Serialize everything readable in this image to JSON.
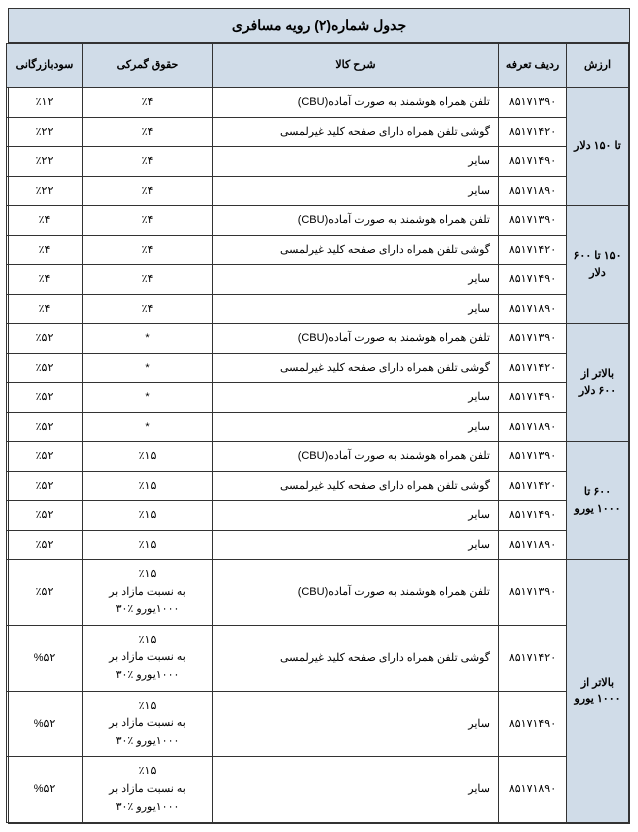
{
  "title": "جدول شماره(۲) رویه مسافری",
  "columns": {
    "arzeesh": "ارزش",
    "tariff": "ردیف تعرفه",
    "desc": "شرح کالا",
    "duty": "حقوق گمرکی",
    "trade": "سودبازرگانی"
  },
  "groups": [
    {
      "label": "تا ۱۵۰ دلار",
      "rows": [
        {
          "tariff": "۸۵۱۷۱۳۹۰",
          "desc": "تلفن همراه هوشمند به صورت آماده(CBU)",
          "duty": "٪۴",
          "trade": "٪۱۲"
        },
        {
          "tariff": "۸۵۱۷۱۴۲۰",
          "desc": "گوشی تلفن همراه دارای صفحه کلید غیرلمسی",
          "duty": "٪۴",
          "trade": "٪۲۲"
        },
        {
          "tariff": "۸۵۱۷۱۴۹۰",
          "desc": "سایر",
          "duty": "٪۴",
          "trade": "٪۲۲"
        },
        {
          "tariff": "۸۵۱۷۱۸۹۰",
          "desc": "سایر",
          "duty": "٪۴",
          "trade": "٪۲۲"
        }
      ]
    },
    {
      "label": "۱۵۰ تا ۶۰۰ دلار",
      "rows": [
        {
          "tariff": "۸۵۱۷۱۳۹۰",
          "desc": "تلفن همراه هوشمند به صورت آماده(CBU)",
          "duty": "٪۴",
          "trade": "٪۴"
        },
        {
          "tariff": "۸۵۱۷۱۴۲۰",
          "desc": "گوشی تلفن همراه دارای صفحه کلید غیرلمسی",
          "duty": "٪۴",
          "trade": "٪۴"
        },
        {
          "tariff": "۸۵۱۷۱۴۹۰",
          "desc": "سایر",
          "duty": "٪۴",
          "trade": "٪۴"
        },
        {
          "tariff": "۸۵۱۷۱۸۹۰",
          "desc": "سایر",
          "duty": "٪۴",
          "trade": "٪۴"
        }
      ]
    },
    {
      "label": "بالاتر از ۶۰۰ دلار",
      "rows": [
        {
          "tariff": "۸۵۱۷۱۳۹۰",
          "desc": "تلفن همراه هوشمند به صورت آماده(CBU)",
          "duty": "*",
          "trade": "٪۵۲"
        },
        {
          "tariff": "۸۵۱۷۱۴۲۰",
          "desc": "گوشی تلفن همراه دارای صفحه کلید غیرلمسی",
          "duty": "*",
          "trade": "٪۵۲"
        },
        {
          "tariff": "۸۵۱۷۱۴۹۰",
          "desc": "سایر",
          "duty": "*",
          "trade": "٪۵۲"
        },
        {
          "tariff": "۸۵۱۷۱۸۹۰",
          "desc": "سایر",
          "duty": "*",
          "trade": "٪۵۲"
        }
      ]
    },
    {
      "label": "۶۰۰ تا ۱۰۰۰ یورو",
      "rows": [
        {
          "tariff": "۸۵۱۷۱۳۹۰",
          "desc": "تلفن همراه هوشمند به صورت آماده(CBU)",
          "duty": "٪۱۵",
          "trade": "٪۵۲"
        },
        {
          "tariff": "۸۵۱۷۱۴۲۰",
          "desc": "گوشی تلفن همراه دارای صفحه کلید غیرلمسی",
          "duty": "٪۱۵",
          "trade": "٪۵۲"
        },
        {
          "tariff": "۸۵۱۷۱۴۹۰",
          "desc": "سایر",
          "duty": "٪۱۵",
          "trade": "٪۵۲"
        },
        {
          "tariff": "۸۵۱۷۱۸۹۰",
          "desc": "سایر",
          "duty": "٪۱۵",
          "trade": "٪۵۲"
        }
      ]
    },
    {
      "label": "بالاتر از ۱۰۰۰ یورو",
      "rows": [
        {
          "tariff": "۸۵۱۷۱۳۹۰",
          "desc": "تلفن همراه هوشمند به صورت آماده(CBU)",
          "duty": "٪۱۵\nبه نسبت مازاد بر ۱۰۰۰یورو ٪۳۰",
          "trade": "٪۵۲"
        },
        {
          "tariff": "۸۵۱۷۱۴۲۰",
          "desc": "گوشی تلفن همراه دارای صفحه کلید غیرلمسی",
          "duty": "٪۱۵\nبه نسبت مازاد بر ۱۰۰۰یورو ٪۳۰",
          "trade": "%۵۲"
        },
        {
          "tariff": "۸۵۱۷۱۴۹۰",
          "desc": "سایر",
          "duty": "٪۱۵\nبه نسبت مازاد بر ۱۰۰۰یورو ٪۳۰",
          "trade": "%۵۲"
        },
        {
          "tariff": "۸۵۱۷۱۸۹۰",
          "desc": "سایر",
          "duty": "٪۱۵\nبه نسبت مازاد بر ۱۰۰۰یورو ٪۳۰",
          "trade": "%۵۲"
        }
      ]
    }
  ],
  "colors": {
    "header_bg": "#d0dce8",
    "border": "#333333",
    "bg": "#ffffff"
  }
}
